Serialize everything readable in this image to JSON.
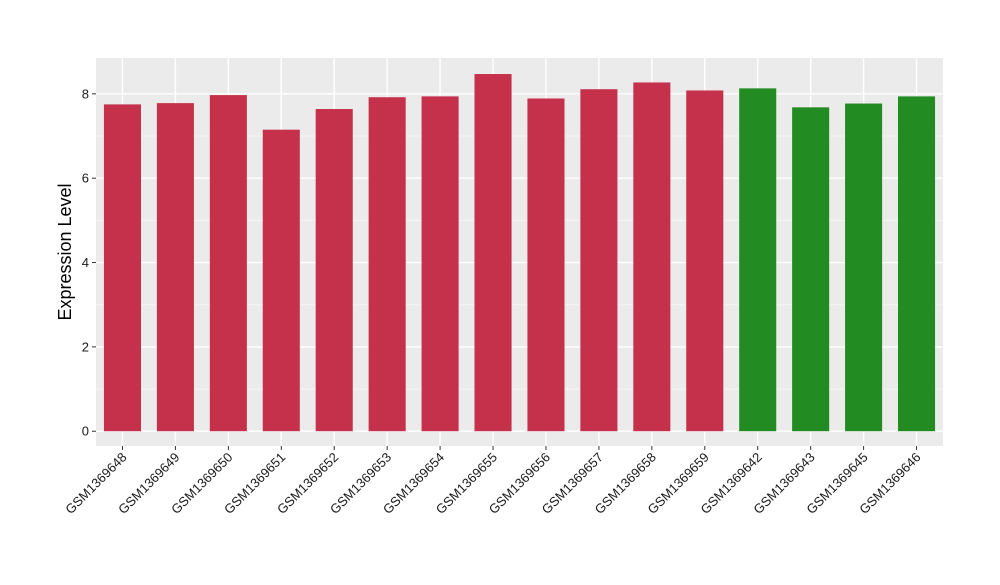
{
  "chart_data": {
    "type": "bar",
    "title": "",
    "xlabel": "",
    "ylabel": "Expression Level",
    "ylim": [
      -0.35,
      8.85
    ],
    "yticks": [
      0,
      2,
      4,
      6,
      8
    ],
    "grid": true,
    "legend": "none",
    "colors": {
      "panel_background": "#ebebeb",
      "grid_major": "#ffffff",
      "grid_minor": "#f5f5f5",
      "group_a": "#c5304a",
      "group_b": "#228b22"
    },
    "categories": [
      "GSM1369648",
      "GSM1369649",
      "GSM1369650",
      "GSM1369651",
      "GSM1369652",
      "GSM1369653",
      "GSM1369654",
      "GSM1369655",
      "GSM1369656",
      "GSM1369657",
      "GSM1369658",
      "GSM1369659",
      "GSM1369642",
      "GSM1369643",
      "GSM1369645",
      "GSM1369646"
    ],
    "values": [
      7.75,
      7.78,
      7.97,
      7.15,
      7.64,
      7.92,
      7.94,
      8.47,
      7.89,
      8.11,
      8.27,
      8.08,
      8.13,
      7.68,
      7.77,
      7.94
    ],
    "bar_groups": [
      "a",
      "a",
      "a",
      "a",
      "a",
      "a",
      "a",
      "a",
      "a",
      "a",
      "a",
      "a",
      "b",
      "b",
      "b",
      "b"
    ]
  }
}
